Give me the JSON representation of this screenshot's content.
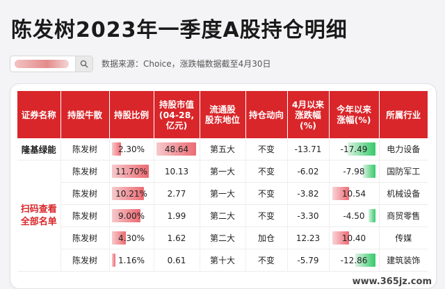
{
  "title": "陈发树2023年一季度A股持仓明细",
  "source_text": "数据来源：Choice，涨跌幅数据截至4月30日",
  "colors": {
    "header_red": "#d9262a",
    "bar_red": "#ec6a72",
    "bar_green": "#35c96a"
  },
  "search": {
    "icon": "search-icon"
  },
  "table": {
    "headers": [
      "证券名称",
      "持股牛散",
      "持股比例",
      "持股市值\n(04-28,\n亿元)",
      "流通股\n股东地位",
      "持仓动向",
      "4月以来\n涨跌幅\n(%)",
      "今年以来\n涨幅(%)",
      "所属行业"
    ],
    "promo_text": [
      "扫码查看",
      "全部名单"
    ],
    "rows": [
      {
        "name": "隆基绿能",
        "holder": "陈发树",
        "ratio": "2.30%",
        "ratio_frac": 0.23,
        "value": "48.64",
        "value_frac": 0.95,
        "rank": "第五大",
        "action": "不变",
        "april": "-13.71",
        "ytd": "-17.49",
        "ytd_num": -17.49,
        "industry": "电力设备"
      },
      {
        "name": "",
        "holder": "陈发树",
        "ratio": "11.70%",
        "ratio_frac": 0.92,
        "value": "10.13",
        "value_frac": 0,
        "rank": "第一大",
        "action": "不变",
        "april": "-6.02",
        "ytd": "-7.98",
        "ytd_num": -7.98,
        "industry": "国防军工"
      },
      {
        "name": "",
        "holder": "陈发树",
        "ratio": "10.21%",
        "ratio_frac": 0.8,
        "value": "2.77",
        "value_frac": 0,
        "rank": "第一大",
        "action": "不变",
        "april": "-3.82",
        "ytd": "10.54",
        "ytd_num": 10.54,
        "industry": "机械设备"
      },
      {
        "name": "",
        "holder": "陈发树",
        "ratio": "9.00%",
        "ratio_frac": 0.7,
        "value": "1.99",
        "value_frac": 0,
        "rank": "第二大",
        "action": "不变",
        "april": "-3.30",
        "ytd": "-4.50",
        "ytd_num": -4.5,
        "industry": "商贸零售"
      },
      {
        "name": "",
        "holder": "陈发树",
        "ratio": "4.30%",
        "ratio_frac": 0.34,
        "value": "1.62",
        "value_frac": 0,
        "rank": "第二大",
        "action": "加仓",
        "april": "12.23",
        "ytd": "10.40",
        "ytd_num": 10.4,
        "industry": "传媒"
      },
      {
        "name": "",
        "holder": "陈发树",
        "ratio": "1.16%",
        "ratio_frac": 0.09,
        "value": "0.61",
        "value_frac": 0,
        "rank": "第十大",
        "action": "不变",
        "april": "-5.79",
        "ytd": "-12.86",
        "ytd_num": -12.86,
        "industry": "建筑装饰"
      }
    ]
  },
  "watermark": "www.365jz.com"
}
